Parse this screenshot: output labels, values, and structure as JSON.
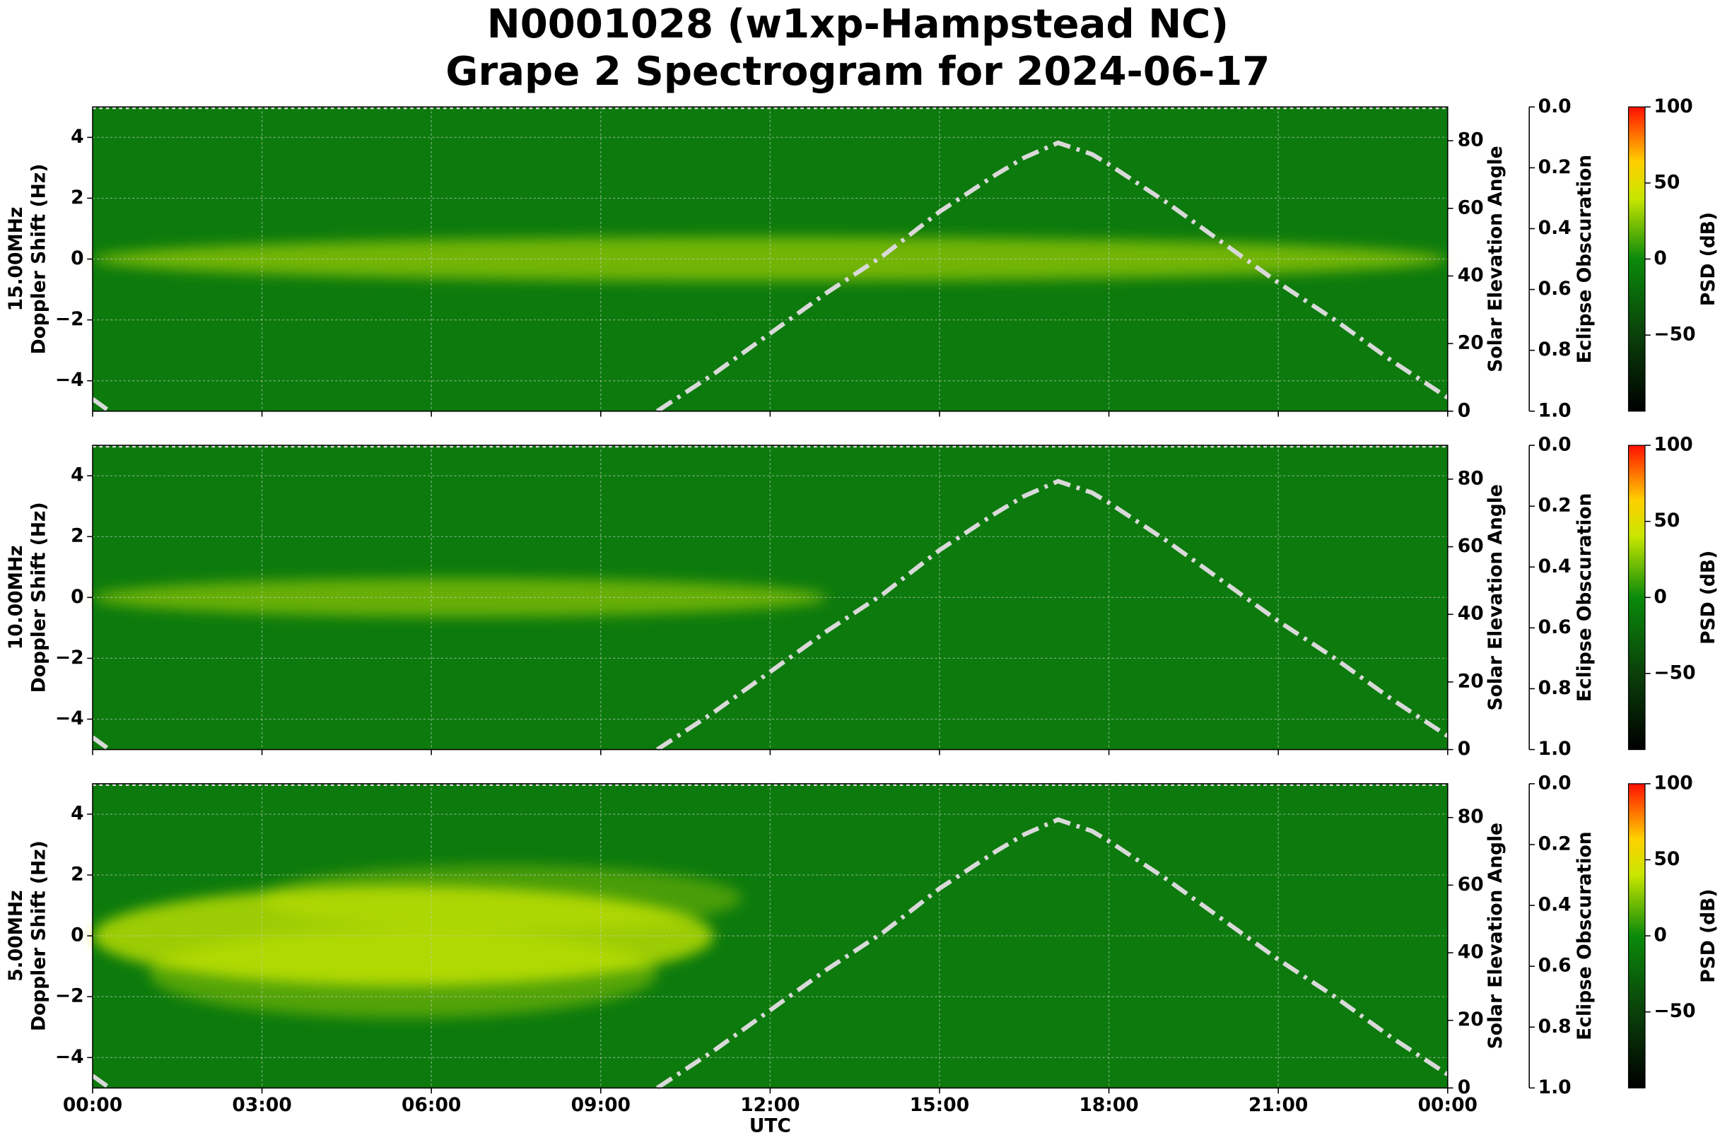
{
  "figure": {
    "title": [
      "N0001028 (w1xp-Hampstead NC)",
      "Grape 2 Spectrogram for 2024-06-17"
    ],
    "xlabel": "UTC",
    "xlim": [
      0,
      24
    ],
    "xticks": [
      {
        "value": 0,
        "label": "00:00"
      },
      {
        "value": 3,
        "label": "03:00"
      },
      {
        "value": 6,
        "label": "06:00"
      },
      {
        "value": 9,
        "label": "09:00"
      },
      {
        "value": 12,
        "label": "12:00"
      },
      {
        "value": 15,
        "label": "15:00"
      },
      {
        "value": 18,
        "label": "18:00"
      },
      {
        "value": 21,
        "label": "21:00"
      },
      {
        "value": 24,
        "label": "00:00"
      }
    ]
  },
  "chart_data": [
    {
      "type": "spectrogram",
      "ylabel": [
        "15.00MHz",
        "Doppler Shift (Hz)"
      ],
      "ylim": [
        -5,
        5
      ],
      "yticks": [
        {
          "value": -4,
          "label": "−4"
        },
        {
          "value": -2,
          "label": "−2"
        },
        0,
        2,
        4
      ],
      "grid": true,
      "y2label": "Solar Elevation Angle",
      "y2lim": [
        0,
        90
      ],
      "y2ticks": [
        0,
        20,
        40,
        60,
        80
      ],
      "y3label": "Eclipse Obscuration",
      "y3lim": [
        1,
        0
      ],
      "y3ticks": [
        {
          "value": 0,
          "label": "0.0"
        },
        {
          "value": 0.2,
          "label": "0.2"
        },
        {
          "value": 0.4,
          "label": "0.4"
        },
        {
          "value": 0.6,
          "label": "0.6"
        },
        {
          "value": 0.8,
          "label": "0.8"
        },
        {
          "value": 1,
          "label": "1.0"
        }
      ],
      "colorbar": {
        "label": "PSD (dB)",
        "clim": [
          -100,
          100
        ],
        "ticks": [
          {
            "value": -50,
            "label": "−50"
          },
          0,
          50,
          100
        ]
      },
      "elevation": {
        "color": "#d9d9d9",
        "x": [
          0,
          0.3,
          5,
          10,
          11,
          12,
          13,
          14,
          15,
          16,
          16.5,
          17.1,
          17.7,
          18,
          19,
          20,
          21,
          22,
          23,
          24
        ],
        "values": [
          3.6,
          0,
          null,
          0,
          11,
          23,
          35,
          46,
          59,
          70,
          75,
          79.4,
          76,
          73,
          62,
          50,
          38,
          27,
          15,
          4
        ]
      }
    },
    {
      "type": "spectrogram",
      "ylabel": [
        "10.00MHz",
        "Doppler Shift (Hz)"
      ],
      "ylim": [
        -5,
        5
      ],
      "yticks": [
        {
          "value": -4,
          "label": "−4"
        },
        {
          "value": -2,
          "label": "−2"
        },
        0,
        2,
        4
      ],
      "grid": true,
      "y2label": "Solar Elevation Angle",
      "y2lim": [
        0,
        90
      ],
      "y2ticks": [
        0,
        20,
        40,
        60,
        80
      ],
      "y3label": "Eclipse Obscuration",
      "y3lim": [
        1,
        0
      ],
      "y3ticks": [
        {
          "value": 0,
          "label": "0.0"
        },
        {
          "value": 0.2,
          "label": "0.2"
        },
        {
          "value": 0.4,
          "label": "0.4"
        },
        {
          "value": 0.6,
          "label": "0.6"
        },
        {
          "value": 0.8,
          "label": "0.8"
        },
        {
          "value": 1,
          "label": "1.0"
        }
      ],
      "colorbar": {
        "label": "PSD (dB)",
        "clim": [
          -100,
          100
        ],
        "ticks": [
          {
            "value": -50,
            "label": "−50"
          },
          0,
          50,
          100
        ]
      },
      "elevation": {
        "color": "#d9d9d9",
        "x": [
          0,
          0.3,
          5,
          10,
          11,
          12,
          13,
          14,
          15,
          16,
          16.5,
          17.1,
          17.7,
          18,
          19,
          20,
          21,
          22,
          23,
          24
        ],
        "values": [
          3.6,
          0,
          null,
          0,
          11,
          23,
          35,
          46,
          59,
          70,
          75,
          79.4,
          76,
          73,
          62,
          50,
          38,
          27,
          15,
          4
        ]
      }
    },
    {
      "type": "spectrogram",
      "ylabel": [
        "5.00MHz",
        "Doppler Shift (Hz)"
      ],
      "ylim": [
        -5,
        5
      ],
      "yticks": [
        {
          "value": -4,
          "label": "−4"
        },
        {
          "value": -2,
          "label": "−2"
        },
        0,
        2,
        4
      ],
      "grid": true,
      "y2label": "Solar Elevation Angle",
      "y2lim": [
        0,
        90
      ],
      "y2ticks": [
        0,
        20,
        40,
        60,
        80
      ],
      "y3label": "Eclipse Obscuration",
      "y3lim": [
        1,
        0
      ],
      "y3ticks": [
        {
          "value": 0,
          "label": "0.0"
        },
        {
          "value": 0.2,
          "label": "0.2"
        },
        {
          "value": 0.4,
          "label": "0.4"
        },
        {
          "value": 0.6,
          "label": "0.6"
        },
        {
          "value": 0.8,
          "label": "0.8"
        },
        {
          "value": 1,
          "label": "1.0"
        }
      ],
      "colorbar": {
        "label": "PSD (dB)",
        "clim": [
          -100,
          100
        ],
        "ticks": [
          {
            "value": -50,
            "label": "−50"
          },
          0,
          50,
          100
        ]
      },
      "elevation": {
        "color": "#d9d9d9",
        "x": [
          0,
          0.3,
          5,
          10,
          11,
          12,
          13,
          14,
          15,
          16,
          16.5,
          17.1,
          17.7,
          18,
          19,
          20,
          21,
          22,
          23,
          24
        ],
        "values": [
          3.6,
          0,
          null,
          0,
          11,
          23,
          35,
          46,
          59,
          70,
          75,
          79.4,
          76,
          73,
          62,
          50,
          38,
          27,
          15,
          4
        ]
      }
    }
  ]
}
